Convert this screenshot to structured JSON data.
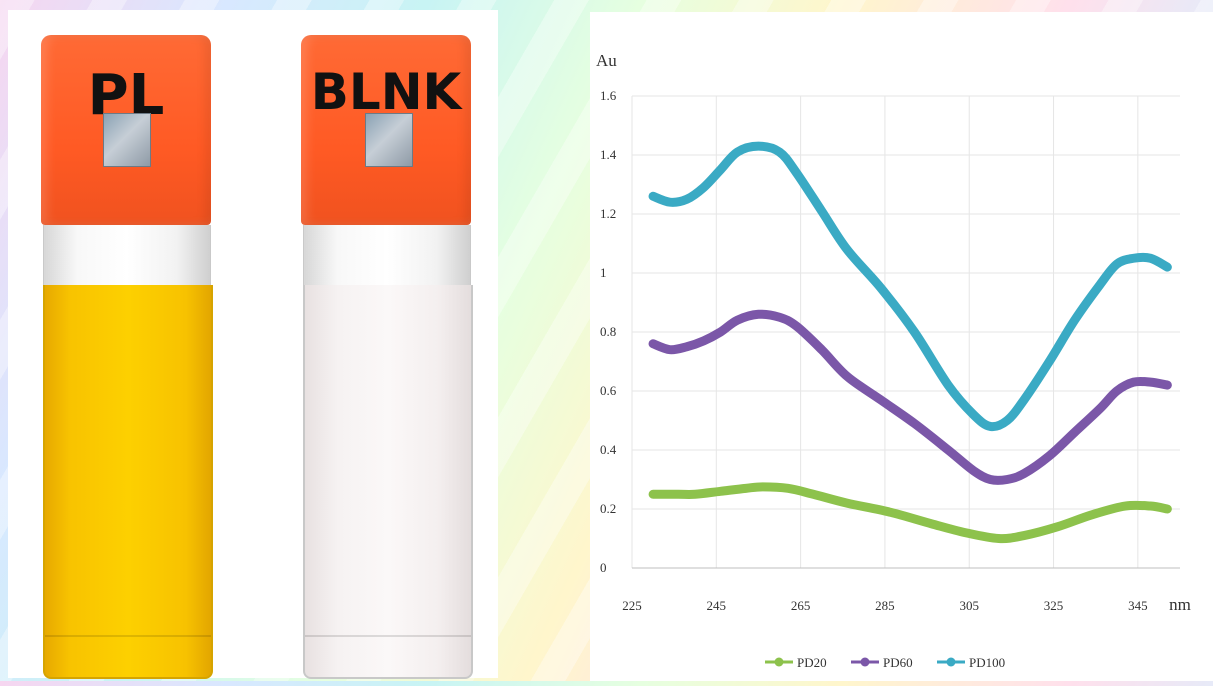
{
  "vials": [
    {
      "label": "PL",
      "liquid_color": "#fcc900"
    },
    {
      "label": "BLNK",
      "liquid_color": "#f8f4f4"
    }
  ],
  "chart_data": {
    "type": "line",
    "ylabel": "Au",
    "xlabel": "nm",
    "xlim": [
      225,
      355
    ],
    "ylim": [
      0,
      1.6
    ],
    "xticks": [
      225,
      245,
      265,
      285,
      305,
      325,
      345
    ],
    "yticks": [
      0,
      0.2,
      0.4,
      0.6,
      0.8,
      1,
      1.2,
      1.4,
      1.6
    ],
    "ytick_labels": [
      "0",
      "0.2",
      "0.4",
      "0.6",
      "0.8",
      "1",
      "1.2",
      "1.4",
      "1.6"
    ],
    "grid": true,
    "legend_position": "bottom",
    "series": [
      {
        "name": "PD20",
        "color": "#8dc24c",
        "x": [
          230,
          236,
          240,
          246,
          252,
          256,
          262,
          268,
          276,
          286,
          296,
          304,
          312,
          318,
          326,
          334,
          342,
          348,
          352
        ],
        "y": [
          0.25,
          0.25,
          0.25,
          0.26,
          0.27,
          0.275,
          0.27,
          0.25,
          0.22,
          0.19,
          0.15,
          0.12,
          0.1,
          0.11,
          0.14,
          0.18,
          0.21,
          0.21,
          0.2
        ]
      },
      {
        "name": "PD60",
        "color": "#7b57a8",
        "x": [
          230,
          234,
          238,
          242,
          246,
          250,
          255,
          260,
          264,
          270,
          276,
          284,
          292,
          300,
          306,
          310,
          314,
          318,
          324,
          330,
          336,
          340,
          344,
          348,
          352
        ],
        "y": [
          0.76,
          0.74,
          0.75,
          0.77,
          0.8,
          0.84,
          0.86,
          0.85,
          0.82,
          0.74,
          0.65,
          0.57,
          0.49,
          0.4,
          0.33,
          0.3,
          0.3,
          0.32,
          0.38,
          0.46,
          0.54,
          0.6,
          0.63,
          0.63,
          0.62
        ]
      },
      {
        "name": "PD100",
        "color": "#3aaac4",
        "x": [
          230,
          234,
          238,
          242,
          246,
          250,
          255,
          260,
          264,
          270,
          276,
          284,
          292,
          300,
          306,
          310,
          314,
          318,
          324,
          330,
          336,
          340,
          344,
          348,
          352
        ],
        "y": [
          1.26,
          1.24,
          1.25,
          1.29,
          1.35,
          1.41,
          1.43,
          1.41,
          1.34,
          1.21,
          1.08,
          0.95,
          0.8,
          0.62,
          0.52,
          0.48,
          0.5,
          0.57,
          0.7,
          0.84,
          0.96,
          1.03,
          1.05,
          1.05,
          1.02
        ]
      }
    ]
  }
}
